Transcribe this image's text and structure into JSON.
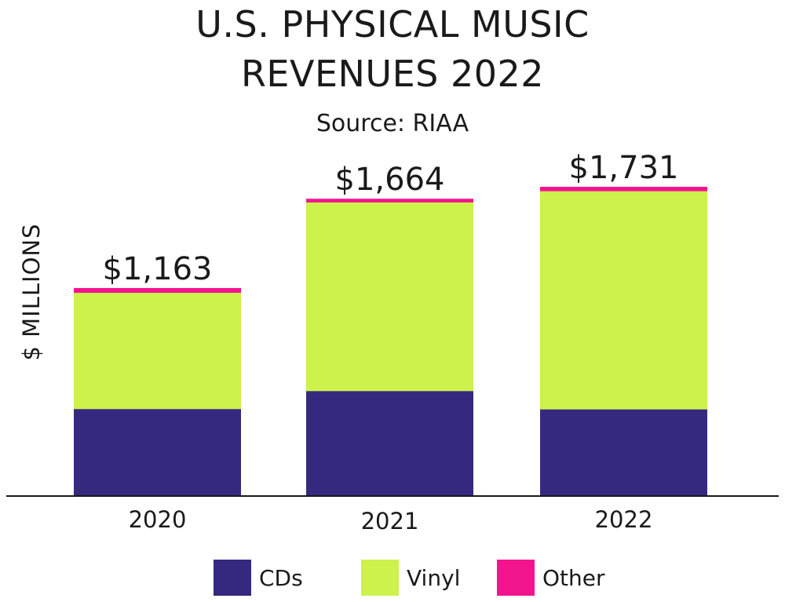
{
  "chart_data": {
    "type": "bar",
    "stacked": true,
    "title_lines": [
      "U.S. PHYSICAL MUSIC",
      "REVENUES 2022"
    ],
    "subtitle": "Source: RIAA",
    "xlabel": "",
    "ylabel": "$ MILLIONS",
    "categories": [
      "2020",
      "2021",
      "2022"
    ],
    "total_labels": [
      "$1,163",
      "$1,664",
      "$1,731"
    ],
    "totals": [
      1163,
      1664,
      1731
    ],
    "series": [
      {
        "name": "CDs",
        "color": "#35297f",
        "values": [
          484,
          585,
          482
        ]
      },
      {
        "name": "Vinyl",
        "color": "#ccf24b",
        "values": [
          652,
          1058,
          1224
        ]
      },
      {
        "name": "Other",
        "color": "#f2148c",
        "values": [
          27,
          21,
          25
        ]
      }
    ],
    "ylim": [
      0,
      1731
    ],
    "grid": false,
    "legend_position": "bottom"
  }
}
